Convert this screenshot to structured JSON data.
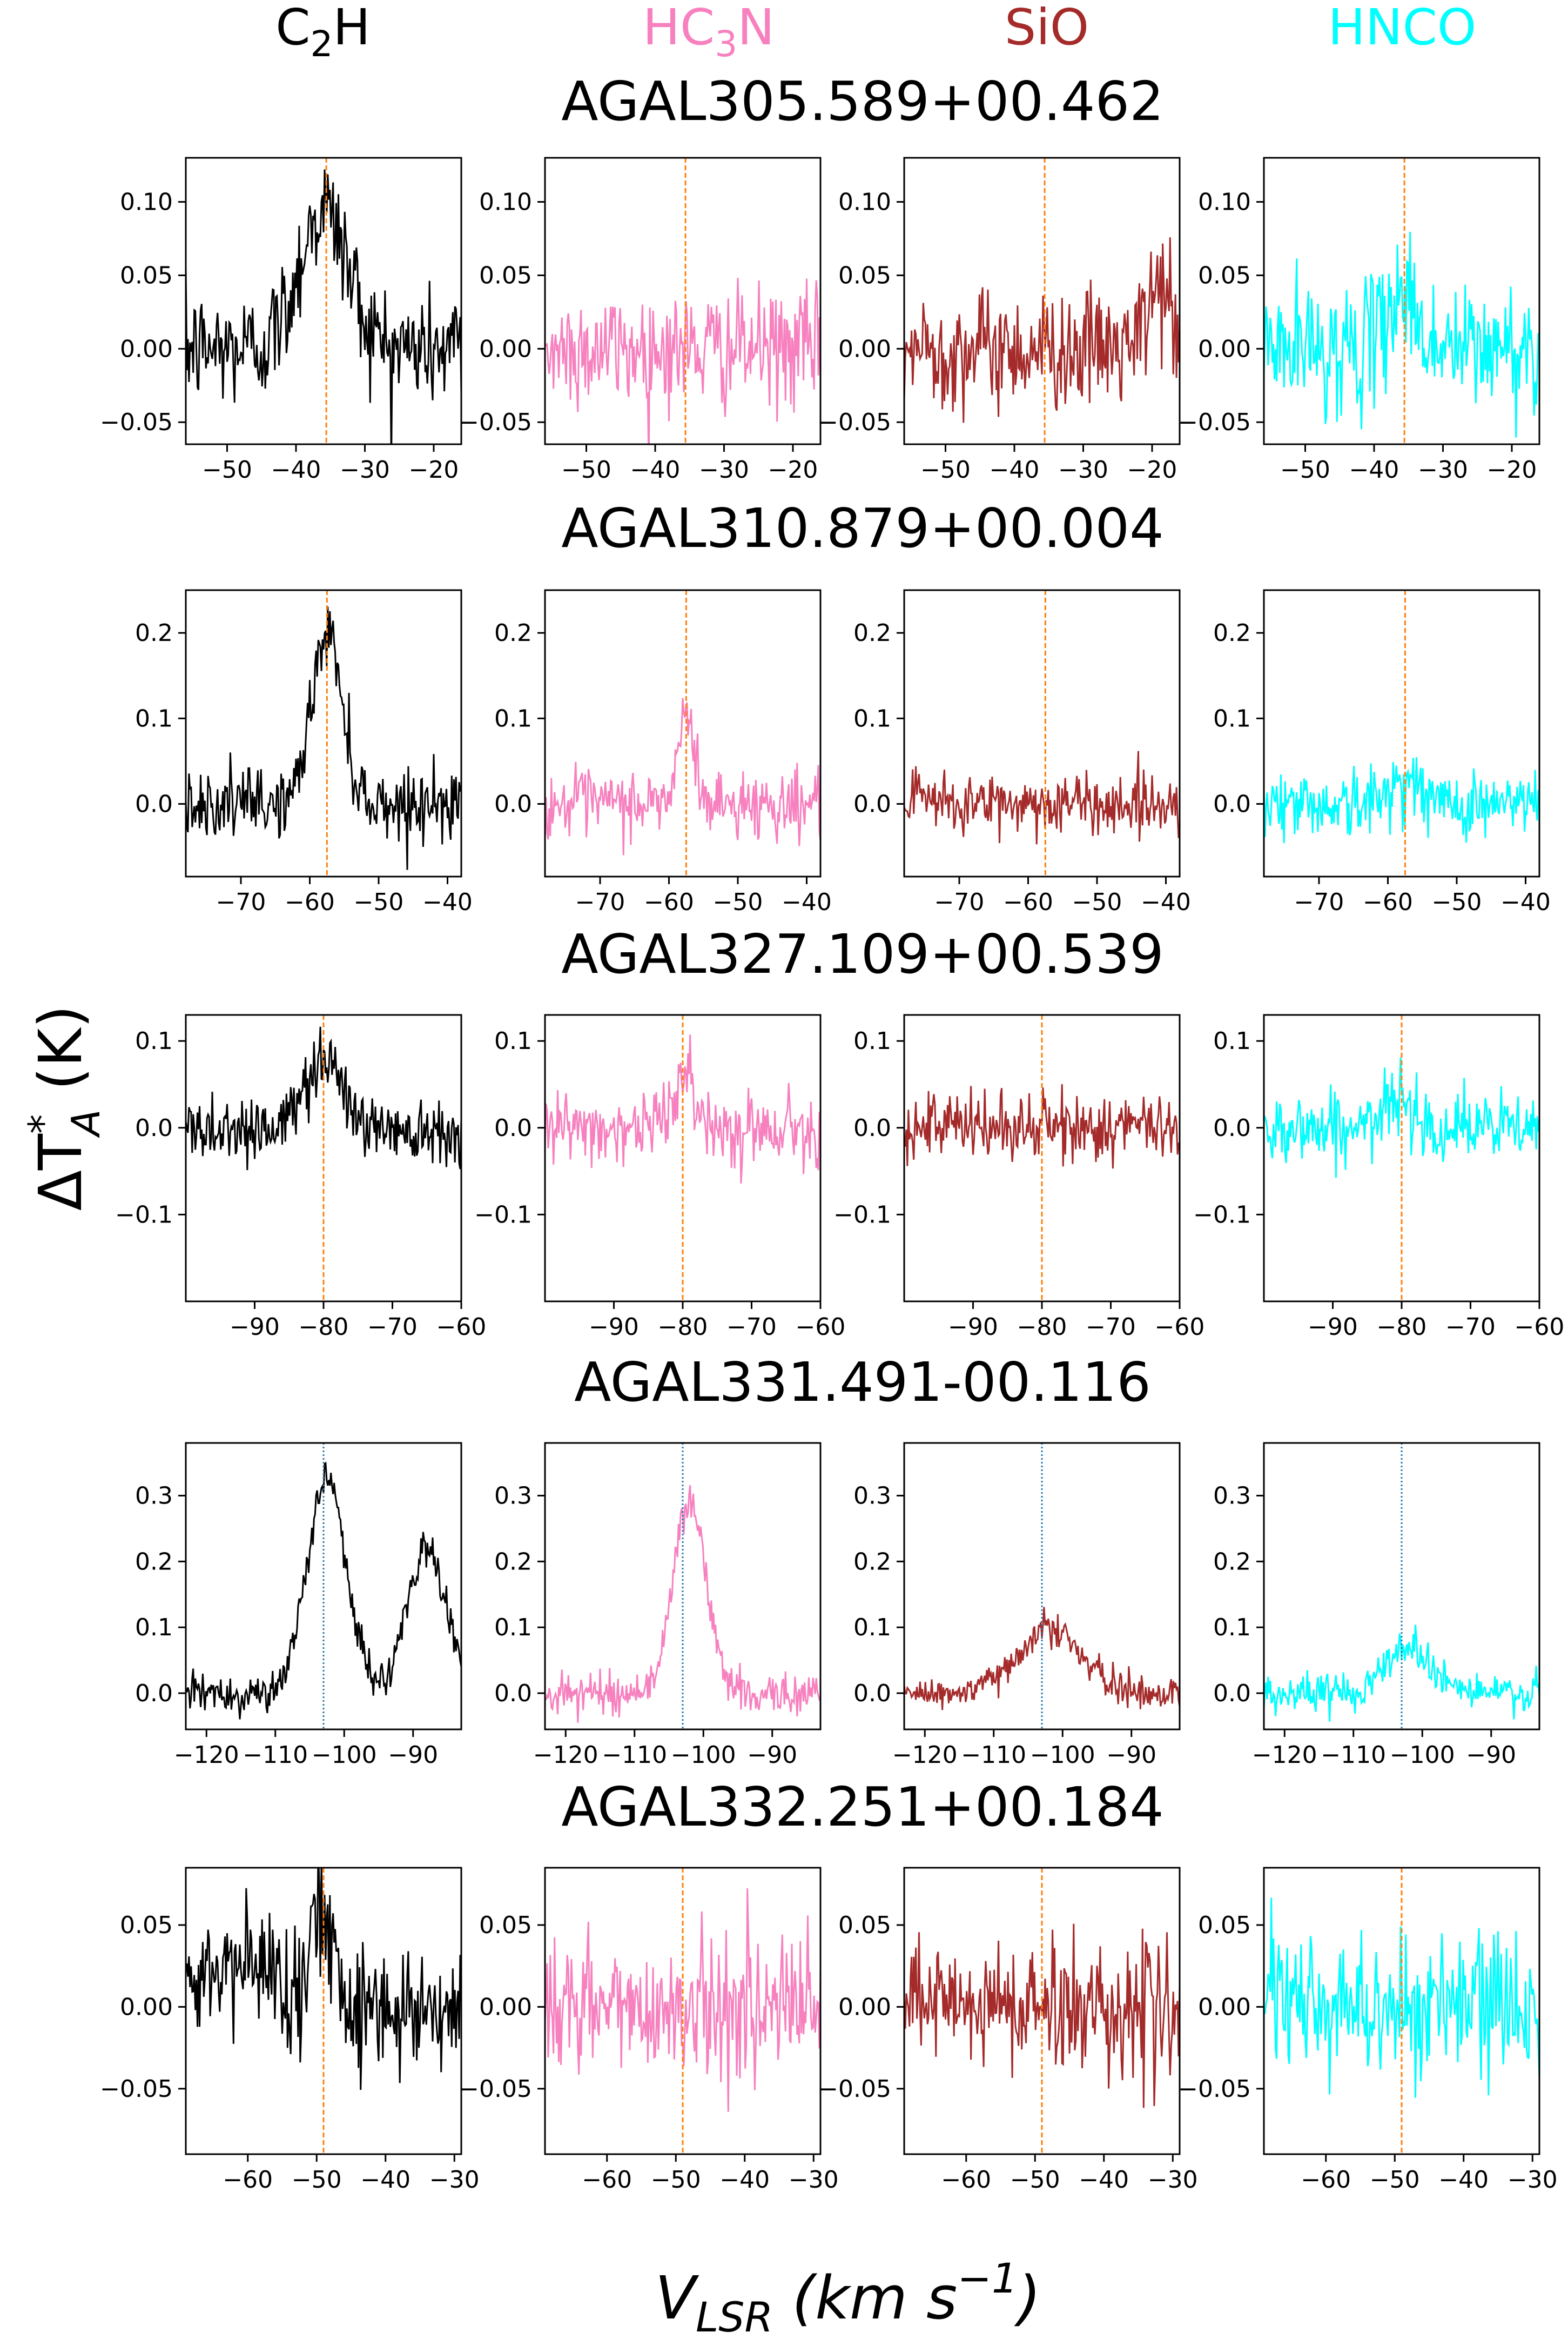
{
  "figure": {
    "column_headers": [
      {
        "molecule": "C2H",
        "text": "C",
        "sub": "2",
        "tail": "H",
        "color": "#000000"
      },
      {
        "molecule": "HC3N",
        "text": "HC",
        "sub": "3",
        "tail": "N",
        "color": "#f781bf"
      },
      {
        "molecule": "SiO",
        "text": "SiO",
        "sub": "",
        "tail": "",
        "color": "#a52a2a"
      },
      {
        "molecule": "HNCO",
        "text": "HNCO",
        "sub": "",
        "tail": "",
        "color": "#00ffff"
      }
    ],
    "ylabel": {
      "text": "ΔT",
      "sup": "*",
      "sub": "A",
      "unit": " (K)"
    },
    "xlabel": {
      "text": "V",
      "sub": "LSR",
      "unit": " (km s",
      "sup": "−1",
      "close": ")"
    },
    "colors": {
      "C2H": "#000000",
      "HC3N": "#f781bf",
      "SiO": "#a52a2a",
      "HNCO": "#00ffff",
      "vline_orange": "#ff7f0e",
      "vline_blue": "#1f77b4"
    }
  },
  "chart_data": [
    {
      "type": "line",
      "title": "AGAL305.589+00.462",
      "xlim": [
        -56,
        -16
      ],
      "ylim": [
        -0.065,
        0.13
      ],
      "xticks": [
        -50,
        -40,
        -30,
        -20
      ],
      "yticks": [
        -0.05,
        0.0,
        0.05,
        0.1
      ],
      "yticklabels": [
        "−0.05",
        "0.00",
        "0.05",
        "0.10"
      ],
      "vline": -35.6,
      "vline_color": "orange",
      "series": [
        {
          "molecule": "C2H",
          "noise": 0.02,
          "components": [
            {
              "center": -36,
              "amp": 0.095,
              "width": 3.5
            }
          ]
        },
        {
          "molecule": "HC3N",
          "noise": 0.02,
          "components": []
        },
        {
          "molecule": "SiO",
          "noise": 0.02,
          "components": [
            {
              "center": -19,
              "amp": 0.045,
              "width": 1.5
            }
          ]
        },
        {
          "molecule": "HNCO",
          "noise": 0.022,
          "components": [
            {
              "center": -36,
              "amp": 0.04,
              "width": 2
            }
          ]
        }
      ]
    },
    {
      "type": "line",
      "title": "AGAL310.879+00.004",
      "xlim": [
        -78,
        -38
      ],
      "ylim": [
        -0.085,
        0.25
      ],
      "xticks": [
        -70,
        -60,
        -50,
        -40
      ],
      "yticks": [
        0.0,
        0.1,
        0.2
      ],
      "yticklabels": [
        "0.0",
        "0.1",
        "0.2"
      ],
      "vline": -57.5,
      "vline_color": "orange",
      "series": [
        {
          "molecule": "C2H",
          "noise": 0.02,
          "components": [
            {
              "center": -57.5,
              "amp": 0.2,
              "width": 2.2
            }
          ]
        },
        {
          "molecule": "HC3N",
          "noise": 0.02,
          "components": [
            {
              "center": -57.5,
              "amp": 0.1,
              "width": 1.2
            }
          ]
        },
        {
          "molecule": "SiO",
          "noise": 0.018,
          "components": []
        },
        {
          "molecule": "HNCO",
          "noise": 0.02,
          "components": [
            {
              "center": -57.5,
              "amp": 0.03,
              "width": 2
            }
          ]
        }
      ]
    },
    {
      "type": "line",
      "title": "AGAL327.109+00.539",
      "xlim": [
        -100,
        -60
      ],
      "ylim": [
        -0.2,
        0.13
      ],
      "xticks": [
        -90,
        -80,
        -70,
        -60
      ],
      "yticks": [
        -0.1,
        0.0,
        0.1
      ],
      "yticklabels": [
        "−0.1",
        "0.0",
        "0.1"
      ],
      "vline": -80,
      "vline_color": "orange",
      "series": [
        {
          "molecule": "C2H",
          "noise": 0.02,
          "components": [
            {
              "center": -80,
              "amp": 0.085,
              "width": 2.5
            }
          ]
        },
        {
          "molecule": "HC3N",
          "noise": 0.02,
          "components": [
            {
              "center": -80,
              "amp": 0.05,
              "width": 2
            }
          ]
        },
        {
          "molecule": "SiO",
          "noise": 0.02,
          "components": []
        },
        {
          "molecule": "HNCO",
          "noise": 0.02,
          "components": [
            {
              "center": -80,
              "amp": 0.035,
              "width": 2
            }
          ]
        }
      ]
    },
    {
      "type": "line",
      "title": "AGAL331.491-00.116",
      "xlim": [
        -123,
        -83
      ],
      "ylim": [
        -0.055,
        0.38
      ],
      "xticks": [
        -120,
        -110,
        -100,
        -90
      ],
      "yticks": [
        0.0,
        0.1,
        0.2,
        0.3
      ],
      "yticklabels": [
        "0.0",
        "0.1",
        "0.2",
        "0.3"
      ],
      "vline": -103,
      "vline_color": "blue",
      "series": [
        {
          "molecule": "C2H",
          "noise": 0.015,
          "components": [
            {
              "center": -102.5,
              "amp": 0.33,
              "width": 2.8
            },
            {
              "center": -88,
              "amp": 0.22,
              "width": 2.8
            }
          ]
        },
        {
          "molecule": "HC3N",
          "noise": 0.015,
          "components": [
            {
              "center": -102,
              "amp": 0.29,
              "width": 2.4
            }
          ]
        },
        {
          "molecule": "SiO",
          "noise": 0.013,
          "components": [
            {
              "center": -102,
              "amp": 0.1,
              "width": 4.5
            }
          ]
        },
        {
          "molecule": "HNCO",
          "noise": 0.015,
          "components": [
            {
              "center": -102,
              "amp": 0.07,
              "width": 3.5
            }
          ]
        }
      ]
    },
    {
      "type": "line",
      "title": "AGAL332.251+00.184",
      "xlim": [
        -69,
        -29
      ],
      "ylim": [
        -0.09,
        0.085
      ],
      "xticks": [
        -60,
        -50,
        -40,
        -30
      ],
      "yticks": [
        -0.05,
        0.0,
        0.05
      ],
      "yticklabels": [
        "−0.05",
        "0.00",
        "0.05"
      ],
      "vline": -49,
      "vline_color": "orange",
      "series": [
        {
          "molecule": "C2H",
          "noise": 0.02,
          "components": [
            {
              "center": -60,
              "amp": 0.025,
              "width": 6
            },
            {
              "center": -49,
              "amp": 0.05,
              "width": 1.8
            }
          ]
        },
        {
          "molecule": "HC3N",
          "noise": 0.02,
          "components": []
        },
        {
          "molecule": "SiO",
          "noise": 0.02,
          "components": []
        },
        {
          "molecule": "HNCO",
          "noise": 0.022,
          "components": []
        }
      ]
    }
  ]
}
